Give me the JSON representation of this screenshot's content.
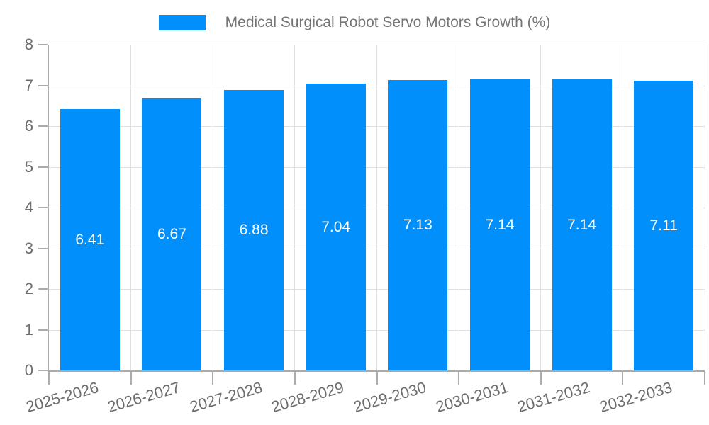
{
  "legend": {
    "items": [
      {
        "label": "Medical Surgical Robot Servo Motors Growth (%)",
        "color": "#008FFB"
      }
    ]
  },
  "chart_data": {
    "type": "bar",
    "title": "Medical Surgical Robot Servo Motors Growth (%)",
    "categories": [
      "2025-2026",
      "2026-2027",
      "2027-2028",
      "2028-2029",
      "2029-2030",
      "2030-2031",
      "2031-2032",
      "2032-2033"
    ],
    "series": [
      {
        "name": "Medical Surgical Robot Servo Motors Growth (%)",
        "values": [
          6.41,
          6.67,
          6.88,
          7.04,
          7.13,
          7.14,
          7.14,
          7.11
        ]
      }
    ],
    "value_labels": [
      "6.41",
      "6.67",
      "6.88",
      "7.04",
      "7.13",
      "7.14",
      "7.14",
      "7.11"
    ],
    "xlabel": "",
    "ylabel": "",
    "ylim": [
      0,
      8
    ],
    "yticks": [
      0,
      1,
      2,
      3,
      4,
      5,
      6,
      7,
      8
    ],
    "grid": true,
    "legend_position": "top",
    "bar_color": "#008FFB",
    "value_label_color": "#FFFFFF",
    "x_label_rotation_deg": -16
  },
  "colors": {
    "background": "#FFFFFF",
    "bar": "#008FFB",
    "grid": "#E0E0E0",
    "axis": "#ABABAB",
    "tick_label": "#6D6D6D",
    "legend_text": "#757575"
  }
}
